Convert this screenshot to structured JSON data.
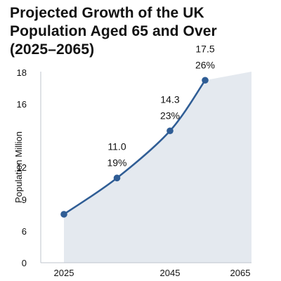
{
  "title_lines": [
    "Projected Growth of the UK",
    "Population Aged 65 and Over",
    "(2025–2065)"
  ],
  "chart_data": {
    "type": "line",
    "title": "Projected Growth of the UK Population Aged 65 and Over (2025–2065)",
    "xlabel": "",
    "ylabel": "Population Million",
    "x_tick_labels": [
      "2025",
      "2045",
      "2065"
    ],
    "y_tick_labels": [
      "0",
      "6",
      "9",
      "12",
      "16",
      "18"
    ],
    "points": [
      {
        "x": 2025,
        "y": 7.6,
        "label_value": "",
        "label_percent": ""
      },
      {
        "x": 2035,
        "y": 11.0,
        "label_value": "11.0",
        "label_percent": "19%"
      },
      {
        "x": 2045,
        "y": 14.3,
        "label_value": "14.3",
        "label_percent": "23%"
      },
      {
        "x": 2055,
        "y": 17.5,
        "label_value": "17.5",
        "label_percent": "26%"
      }
    ],
    "area_fill": true,
    "grid": false,
    "colors": {
      "line": "#2f5d95",
      "marker": "#2f5d95",
      "area": "#e4e9ef",
      "axis": "#bfc5cc",
      "text": "#111111"
    }
  }
}
